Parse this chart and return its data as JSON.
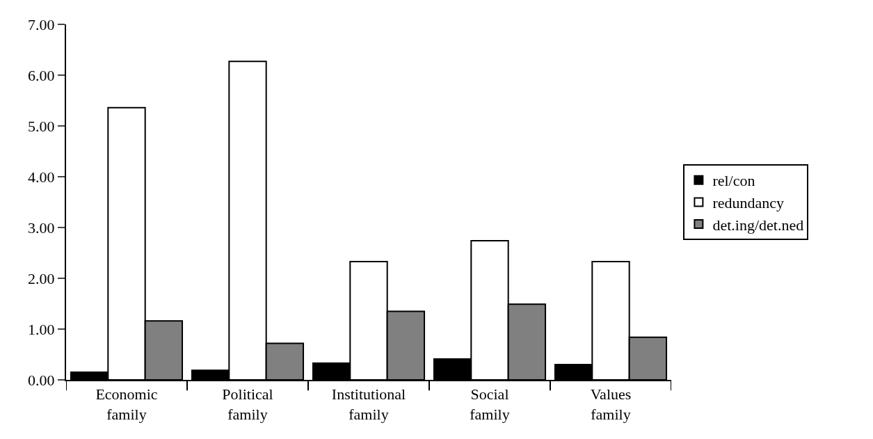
{
  "chart_data": {
    "type": "bar",
    "categories": [
      "Economic family",
      "Political family",
      "Institutional family",
      "Social family",
      "Values family"
    ],
    "series": [
      {
        "name": "rel/con",
        "color": "#000000",
        "values": [
          0.15,
          0.19,
          0.33,
          0.41,
          0.3
        ]
      },
      {
        "name": "redundancy",
        "color": "#ffffff",
        "values": [
          5.36,
          6.27,
          2.33,
          2.74,
          2.33
        ]
      },
      {
        "name": "det.ing/det.ned",
        "color": "#808080",
        "values": [
          1.16,
          0.72,
          1.35,
          1.49,
          0.84
        ]
      }
    ],
    "ylim": [
      0,
      7
    ],
    "yticks": [
      {
        "value": 0,
        "label": "0.00"
      },
      {
        "value": 1,
        "label": "1.00"
      },
      {
        "value": 2,
        "label": "2.00"
      },
      {
        "value": 3,
        "label": "3.00"
      },
      {
        "value": 4,
        "label": "4.00"
      },
      {
        "value": 5,
        "label": "5.00"
      },
      {
        "value": 6,
        "label": "6.00"
      },
      {
        "value": 7,
        "label": "7.00"
      }
    ],
    "legend": "right"
  }
}
